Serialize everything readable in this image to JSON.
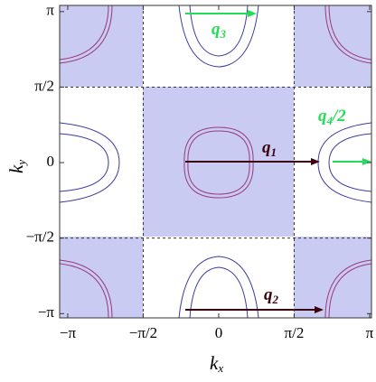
{
  "chart_data": {
    "type": "diagram",
    "x_label": {
      "text": "k",
      "subscript": "x"
    },
    "y_label": {
      "text": "k",
      "subscript": "y"
    },
    "xlim": [
      -3.31,
      3.18
    ],
    "ylim": [
      -3.23,
      3.27
    ],
    "xticks": [
      {
        "value": -3.1416,
        "label": "−π"
      },
      {
        "value": -1.5708,
        "label": "−π/2"
      },
      0,
      {
        "value": 1.5708,
        "label": "π/2"
      },
      {
        "value": 3.1416,
        "label": "π"
      }
    ],
    "yticks": [
      {
        "value": -3.1416,
        "label": "−π"
      },
      {
        "value": -1.5708,
        "label": "−π/2"
      },
      0,
      {
        "value": 1.5708,
        "label": "π/2"
      },
      {
        "value": 3.1416,
        "label": "π"
      }
    ],
    "annotations": [
      {
        "text": "q",
        "subscript": "1",
        "color": "#3a0010"
      },
      {
        "text": "q",
        "subscript": "2",
        "color": "#3a0010"
      },
      {
        "text": "q",
        "subscript": "3",
        "color": "#22dd55"
      },
      {
        "text": "q",
        "subscript": "4",
        "suffix": "/2",
        "color": "#22dd55"
      }
    ]
  }
}
